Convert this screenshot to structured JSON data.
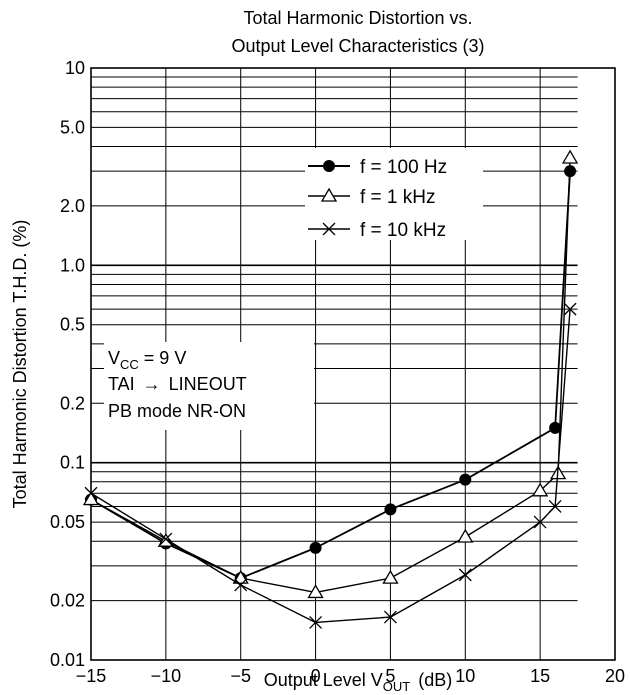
{
  "chart_data": {
    "type": "line",
    "title_lines": [
      "Total Harmonic Distortion vs.",
      "Output Level Characteristics (3)"
    ],
    "xlabel": {
      "main": "Output Level V",
      "sub": "OUT",
      "unit": "(dB)"
    },
    "ylabel": "Total Harmonic Distortion T.H.D.  (%)",
    "xlim": [
      -15,
      20
    ],
    "ylim": [
      0.01,
      10
    ],
    "y_scale": "log",
    "x_ticks": [
      -15,
      -10,
      -5,
      0,
      5,
      10,
      15,
      20
    ],
    "x_tick_labels": [
      "−15",
      "−10",
      "−5",
      "0",
      "5",
      "10",
      "15",
      "20"
    ],
    "y_ticks": [
      0.01,
      0.02,
      0.05,
      0.1,
      0.2,
      0.5,
      1.0,
      2.0,
      5.0,
      10
    ],
    "y_tick_labels": [
      "0.01",
      "0.02",
      "0.05",
      "0.1",
      "0.2",
      "0.5",
      "1.0",
      "2.0",
      "5.0",
      "10"
    ],
    "grid": true,
    "legend_position": "top-right",
    "series": [
      {
        "name": "f = 100 Hz",
        "marker": "filled-circle",
        "x": [
          -15,
          -10,
          -5,
          0,
          5,
          10,
          16,
          17
        ],
        "y": [
          0.065,
          0.039,
          0.026,
          0.037,
          0.058,
          0.082,
          0.15,
          3.0
        ]
      },
      {
        "name": "f = 1 kHz",
        "marker": "open-triangle",
        "x": [
          -15,
          -10,
          -5,
          0,
          5,
          10,
          15,
          16.2,
          17
        ],
        "y": [
          0.065,
          0.04,
          0.026,
          0.022,
          0.026,
          0.042,
          0.072,
          0.088,
          3.5
        ]
      },
      {
        "name": "f = 10 kHz",
        "marker": "cross",
        "x": [
          -15,
          -10,
          -5,
          0,
          5,
          10,
          15,
          16,
          17
        ],
        "y": [
          0.07,
          0.041,
          0.024,
          0.0155,
          0.0165,
          0.027,
          0.05,
          0.06,
          0.6
        ]
      }
    ],
    "annotation": {
      "vcc_main": "V",
      "vcc_sub": "CC",
      "vcc_value": " = 9 V",
      "line2_left": "TAI",
      "line2_arrow": "→",
      "line2_right": "LINEOUT",
      "line3": "PB mode  NR-ON"
    }
  }
}
